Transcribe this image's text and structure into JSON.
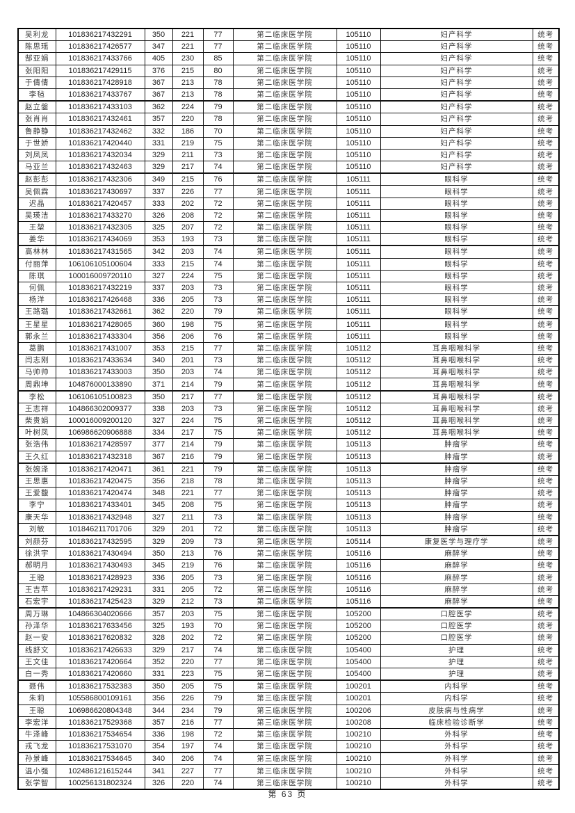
{
  "page": {
    "footer": "第 63 页"
  },
  "table": {
    "rows": [
      [
        "吴利龙",
        "101836217432291",
        "350",
        "221",
        "77",
        "第二临床医学院",
        "105110",
        "妇产科学",
        "统考"
      ],
      [
        "陈思瑶",
        "101836217426577",
        "347",
        "221",
        "77",
        "第二临床医学院",
        "105110",
        "妇产科学",
        "统考"
      ],
      [
        "郜亚娟",
        "101836217433766",
        "405",
        "230",
        "85",
        "第二临床医学院",
        "105110",
        "妇产科学",
        "统考"
      ],
      [
        "张阳阳",
        "101836217429115",
        "376",
        "215",
        "80",
        "第二临床医学院",
        "105110",
        "妇产科学",
        "统考"
      ],
      [
        "于倩倩",
        "101836217428918",
        "367",
        "213",
        "78",
        "第二临床医学院",
        "105110",
        "妇产科学",
        "统考"
      ],
      [
        "李毡",
        "101836217433767",
        "367",
        "213",
        "78",
        "第二临床医学院",
        "105110",
        "妇产科学",
        "统考"
      ],
      [
        "赵立鎜",
        "101836217433103",
        "362",
        "224",
        "79",
        "第二临床医学院",
        "105110",
        "妇产科学",
        "统考"
      ],
      [
        "张肖肖",
        "101836217432461",
        "357",
        "220",
        "78",
        "第二临床医学院",
        "105110",
        "妇产科学",
        "统考"
      ],
      [
        "鲁静静",
        "101836217432462",
        "332",
        "186",
        "70",
        "第二临床医学院",
        "105110",
        "妇产科学",
        "统考"
      ],
      [
        "于世娇",
        "101836217420440",
        "331",
        "219",
        "75",
        "第二临床医学院",
        "105110",
        "妇产科学",
        "统考"
      ],
      [
        "刘凤凤",
        "101836217432034",
        "329",
        "211",
        "73",
        "第二临床医学院",
        "105110",
        "妇产科学",
        "统考"
      ],
      [
        "马亚兰",
        "101836217432463",
        "329",
        "217",
        "74",
        "第二临床医学院",
        "105110",
        "妇产科学",
        "统考"
      ],
      [
        "赵彭彭",
        "101836217432306",
        "349",
        "215",
        "76",
        "第二临床医学院",
        "105111",
        "眼科学",
        "统考"
      ],
      [
        "吴佩霖",
        "101836217430697",
        "337",
        "226",
        "77",
        "第二临床医学院",
        "105111",
        "眼科学",
        "统考"
      ],
      [
        "迟晶",
        "101836217420457",
        "333",
        "202",
        "72",
        "第二临床医学院",
        "105111",
        "眼科学",
        "统考"
      ],
      [
        "吴瑛洁",
        "101836217433270",
        "326",
        "208",
        "72",
        "第二临床医学院",
        "105111",
        "眼科学",
        "统考"
      ],
      [
        "王堃",
        "101836217432305",
        "325",
        "207",
        "72",
        "第二临床医学院",
        "105111",
        "眼科学",
        "统考"
      ],
      [
        "姜华",
        "101836217434069",
        "353",
        "193",
        "73",
        "第二临床医学院",
        "105111",
        "眼科学",
        "统考"
      ],
      [
        "高林林",
        "101836217431565",
        "342",
        "203",
        "74",
        "第二临床医学院",
        "105111",
        "眼科学",
        "统考"
      ],
      [
        "付丽萍",
        "106106105100604",
        "333",
        "215",
        "74",
        "第二临床医学院",
        "105111",
        "眼科学",
        "统考"
      ],
      [
        "陈琪",
        "100016009720110",
        "327",
        "224",
        "75",
        "第二临床医学院",
        "105111",
        "眼科学",
        "统考"
      ],
      [
        "何佩",
        "101836217432219",
        "337",
        "203",
        "73",
        "第二临床医学院",
        "105111",
        "眼科学",
        "统考"
      ],
      [
        "杨洋",
        "101836217426468",
        "336",
        "205",
        "73",
        "第二临床医学院",
        "105111",
        "眼科学",
        "统考"
      ],
      [
        "王路璐",
        "101836217432661",
        "362",
        "220",
        "79",
        "第二临床医学院",
        "105111",
        "眼科学",
        "统考"
      ],
      [
        "王星星",
        "101836217428065",
        "360",
        "198",
        "75",
        "第二临床医学院",
        "105111",
        "眼科学",
        "统考"
      ],
      [
        "郭永兰",
        "101836217433304",
        "356",
        "206",
        "76",
        "第二临床医学院",
        "105111",
        "眼科学",
        "统考"
      ],
      [
        "葛鹏",
        "101836217431007",
        "353",
        "215",
        "77",
        "第二临床医学院",
        "105112",
        "耳鼻咽喉科学",
        "统考"
      ],
      [
        "闫志刚",
        "101836217433634",
        "340",
        "201",
        "73",
        "第二临床医学院",
        "105112",
        "耳鼻咽喉科学",
        "统考"
      ],
      [
        "马帅帅",
        "101836217433003",
        "350",
        "203",
        "74",
        "第二临床医学院",
        "105112",
        "耳鼻咽喉科学",
        "统考"
      ],
      [
        "周鼎坤",
        "104876000133890",
        "371",
        "214",
        "79",
        "第二临床医学院",
        "105112",
        "耳鼻咽喉科学",
        "统考"
      ],
      [
        "李松",
        "106106105100823",
        "350",
        "217",
        "77",
        "第二临床医学院",
        "105112",
        "耳鼻咽喉科学",
        "统考"
      ],
      [
        "王志祥",
        "104866302009377",
        "338",
        "203",
        "73",
        "第二临床医学院",
        "105112",
        "耳鼻咽喉科学",
        "统考"
      ],
      [
        "柴贵娟",
        "100016009200120",
        "327",
        "224",
        "75",
        "第二临床医学院",
        "105112",
        "耳鼻咽喉科学",
        "统考"
      ],
      [
        "叶树凤",
        "106986620906888",
        "334",
        "217",
        "75",
        "第二临床医学院",
        "105112",
        "耳鼻咽喉科学",
        "统考"
      ],
      [
        "张浩伟",
        "101836217428597",
        "377",
        "214",
        "79",
        "第二临床医学院",
        "105113",
        "肿瘤学",
        "统考"
      ],
      [
        "王久红",
        "101836217432318",
        "367",
        "216",
        "79",
        "第二临床医学院",
        "105113",
        "肿瘤学",
        "统考"
      ],
      [
        "张婉泽",
        "101836217420471",
        "361",
        "221",
        "79",
        "第二临床医学院",
        "105113",
        "肿瘤学",
        "统考"
      ],
      [
        "王思惠",
        "101836217420475",
        "356",
        "218",
        "78",
        "第二临床医学院",
        "105113",
        "肿瘤学",
        "统考"
      ],
      [
        "王爱馥",
        "101836217420474",
        "348",
        "221",
        "77",
        "第二临床医学院",
        "105113",
        "肿瘤学",
        "统考"
      ],
      [
        "李宁",
        "101836217433401",
        "345",
        "208",
        "75",
        "第二临床医学院",
        "105113",
        "肿瘤学",
        "统考"
      ],
      [
        "康天华",
        "101836217432948",
        "327",
        "211",
        "73",
        "第二临床医学院",
        "105113",
        "肿瘤学",
        "统考"
      ],
      [
        "刘敏",
        "101846211701706",
        "329",
        "201",
        "72",
        "第二临床医学院",
        "105113",
        "肿瘤学",
        "统考"
      ],
      [
        "刘颜芬",
        "101836217432595",
        "329",
        "209",
        "73",
        "第二临床医学院",
        "105114",
        "康复医学与理疗学",
        "统考"
      ],
      [
        "徐洪宇",
        "101836217430494",
        "350",
        "213",
        "76",
        "第二临床医学院",
        "105116",
        "麻醉学",
        "统考"
      ],
      [
        "郝明月",
        "101836217430493",
        "345",
        "219",
        "76",
        "第二临床医学院",
        "105116",
        "麻醉学",
        "统考"
      ],
      [
        "王聪",
        "101836217428923",
        "336",
        "205",
        "73",
        "第二临床医学院",
        "105116",
        "麻醉学",
        "统考"
      ],
      [
        "王吉苹",
        "101836217429231",
        "331",
        "205",
        "72",
        "第二临床医学院",
        "105116",
        "麻醉学",
        "统考"
      ],
      [
        "石宏宇",
        "101836217425423",
        "329",
        "212",
        "73",
        "第二临床医学院",
        "105116",
        "麻醉学",
        "统考"
      ],
      [
        "周万琳",
        "104866304020666",
        "357",
        "203",
        "75",
        "第二临床医学院",
        "105200",
        "口腔医学",
        "统考"
      ],
      [
        "孙泽华",
        "101836217633456",
        "325",
        "193",
        "70",
        "第二临床医学院",
        "105200",
        "口腔医学",
        "统考"
      ],
      [
        "赵一安",
        "101836217620832",
        "328",
        "202",
        "72",
        "第二临床医学院",
        "105200",
        "口腔医学",
        "统考"
      ],
      [
        "线舒文",
        "101836217426633",
        "329",
        "217",
        "74",
        "第二临床医学院",
        "105400",
        "护理",
        "统考"
      ],
      [
        "王文佳",
        "101836217420664",
        "352",
        "220",
        "77",
        "第二临床医学院",
        "105400",
        "护理",
        "统考"
      ],
      [
        "白一秀",
        "101836217420660",
        "331",
        "223",
        "75",
        "第二临床医学院",
        "105400",
        "护理",
        "统考"
      ],
      [
        "聂伟",
        "101836217532383",
        "350",
        "205",
        "75",
        "第三临床医学院",
        "100201",
        "内科学",
        "统考"
      ],
      [
        "朱莉",
        "105586800109161",
        "356",
        "226",
        "79",
        "第三临床医学院",
        "100201",
        "内科学",
        "统考"
      ],
      [
        "王聪",
        "106986620804348",
        "344",
        "234",
        "79",
        "第三临床医学院",
        "100206",
        "皮肤病与性病学",
        "统考"
      ],
      [
        "李宏洋",
        "101836217529368",
        "357",
        "216",
        "77",
        "第三临床医学院",
        "100208",
        "临床检验诊断学",
        "统考"
      ],
      [
        "牛泽峰",
        "101836217534654",
        "336",
        "198",
        "72",
        "第三临床医学院",
        "100210",
        "外科学",
        "统考"
      ],
      [
        "戎飞龙",
        "101836217531070",
        "354",
        "197",
        "74",
        "第三临床医学院",
        "100210",
        "外科学",
        "统考"
      ],
      [
        "孙景峰",
        "101836217534645",
        "340",
        "206",
        "74",
        "第三临床医学院",
        "100210",
        "外科学",
        "统考"
      ],
      [
        "温小强",
        "102486121615244",
        "341",
        "227",
        "77",
        "第三临床医学院",
        "100210",
        "外科学",
        "统考"
      ],
      [
        "张学智",
        "100256131802324",
        "326",
        "220",
        "74",
        "第三临床医学院",
        "100210",
        "外科学",
        "统考"
      ]
    ]
  }
}
